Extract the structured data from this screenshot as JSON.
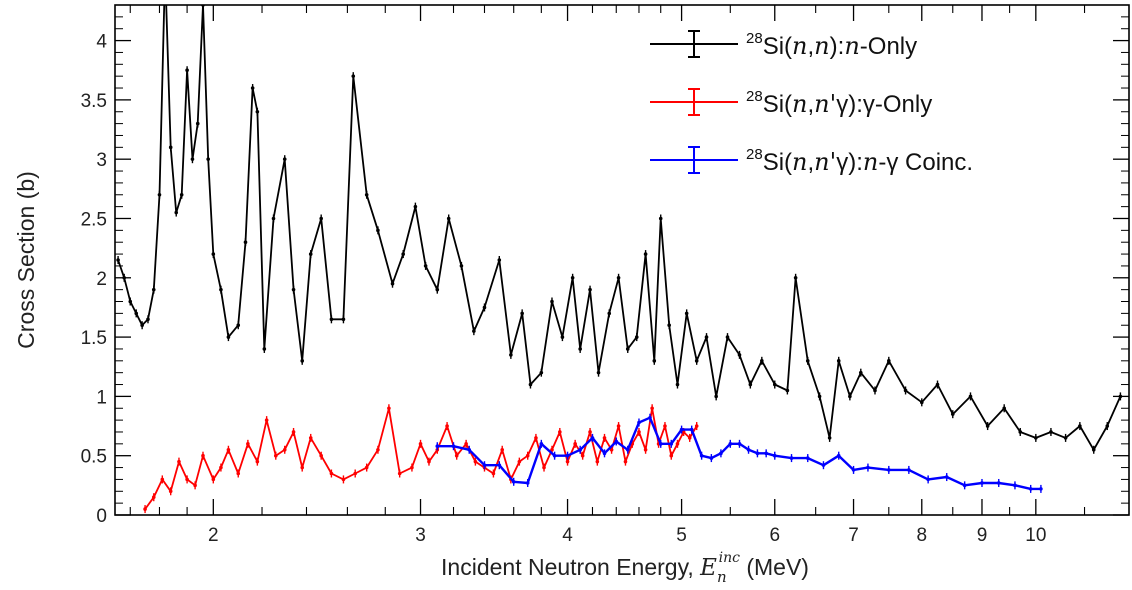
{
  "chart_data": {
    "type": "line",
    "x_scale": "log",
    "xlim": [
      1.65,
      12.0
    ],
    "ylim": [
      0,
      4.3
    ],
    "xticks_major": [
      2,
      3,
      4,
      5,
      6,
      7,
      8,
      9,
      10
    ],
    "xticks_minor": [
      1.7,
      1.8,
      1.9,
      2.2,
      2.4,
      2.6,
      2.8,
      3.2,
      3.4,
      3.6,
      3.8,
      4.2,
      4.4,
      4.6,
      4.8,
      5.5,
      6.5,
      7.5,
      8.5,
      9.5,
      11
    ],
    "yticks_major": [
      0,
      0.5,
      1,
      1.5,
      2,
      2.5,
      3,
      3.5,
      4
    ],
    "xlabel_main": "Incident Neutron Energy, ",
    "xlabel_symbol": "E",
    "xlabel_sub": "n",
    "xlabel_sup": "inc",
    "xlabel_unit": " (MeV)",
    "ylabel": "Cross Section (b)",
    "legend_placement": "top-right",
    "grid": false,
    "series": [
      {
        "name": "28Si(n,n): n-Only",
        "legend": {
          "pre": "28",
          "parts": [
            {
              "t": "Si(",
              "i": false
            },
            {
              "t": "n",
              "i": true
            },
            {
              "t": ",",
              "i": false
            },
            {
              "t": "n",
              "i": true
            },
            {
              "t": "):",
              "i": false
            },
            {
              "t": "n",
              "i": true
            },
            {
              "t": "-Only",
              "i": false
            }
          ]
        },
        "color": "#000000",
        "x": [
          1.66,
          1.68,
          1.7,
          1.72,
          1.74,
          1.76,
          1.78,
          1.8,
          1.82,
          1.84,
          1.86,
          1.88,
          1.9,
          1.92,
          1.94,
          1.96,
          1.98,
          2.0,
          2.03,
          2.06,
          2.1,
          2.13,
          2.16,
          2.18,
          2.21,
          2.25,
          2.3,
          2.34,
          2.38,
          2.42,
          2.47,
          2.52,
          2.58,
          2.63,
          2.7,
          2.76,
          2.84,
          2.9,
          2.97,
          3.03,
          3.1,
          3.17,
          3.25,
          3.33,
          3.4,
          3.5,
          3.58,
          3.66,
          3.72,
          3.8,
          3.88,
          3.96,
          4.04,
          4.1,
          4.18,
          4.25,
          4.34,
          4.42,
          4.5,
          4.58,
          4.66,
          4.74,
          4.8,
          4.88,
          4.96,
          5.05,
          5.15,
          5.25,
          5.35,
          5.47,
          5.6,
          5.72,
          5.85,
          6.0,
          6.15,
          6.25,
          6.4,
          6.55,
          6.68,
          6.8,
          6.95,
          7.1,
          7.3,
          7.5,
          7.75,
          8.0,
          8.25,
          8.5,
          8.8,
          9.1,
          9.4,
          9.7,
          10.0,
          10.3,
          10.6,
          10.9,
          11.2,
          11.5,
          11.8
        ],
        "y": [
          2.15,
          2.0,
          1.8,
          1.7,
          1.6,
          1.65,
          1.9,
          2.7,
          4.6,
          3.1,
          2.55,
          2.7,
          3.75,
          3.0,
          3.3,
          4.3,
          3.0,
          2.2,
          1.9,
          1.5,
          1.6,
          2.3,
          3.6,
          3.4,
          1.4,
          2.5,
          3.0,
          1.9,
          1.3,
          2.2,
          2.5,
          1.65,
          1.65,
          3.7,
          2.7,
          2.4,
          1.95,
          2.2,
          2.6,
          2.1,
          1.9,
          2.5,
          2.1,
          1.55,
          1.75,
          2.15,
          1.35,
          1.7,
          1.1,
          1.2,
          1.8,
          1.5,
          2.0,
          1.4,
          1.9,
          1.2,
          1.7,
          2.0,
          1.4,
          1.5,
          2.2,
          1.3,
          2.5,
          1.6,
          1.1,
          1.7,
          1.3,
          1.5,
          1.0,
          1.5,
          1.35,
          1.1,
          1.3,
          1.1,
          1.05,
          2.0,
          1.3,
          1.0,
          0.65,
          1.3,
          1.0,
          1.2,
          1.05,
          1.3,
          1.05,
          0.95,
          1.1,
          0.85,
          1.0,
          0.75,
          0.9,
          0.7,
          0.65,
          0.7,
          0.65,
          0.75,
          0.55,
          0.75,
          1.0
        ]
      },
      {
        "name": "28Si(n,n'γ):γ-Only",
        "legend": {
          "pre": "28",
          "parts": [
            {
              "t": "Si(",
              "i": false
            },
            {
              "t": "n",
              "i": true
            },
            {
              "t": ",",
              "i": false
            },
            {
              "t": "n'",
              "i": true
            },
            {
              "t": "γ",
              "i": false
            },
            {
              "t": "):γ-Only",
              "i": false
            }
          ]
        },
        "color": "#ff0000",
        "x": [
          1.75,
          1.78,
          1.81,
          1.84,
          1.87,
          1.9,
          1.93,
          1.96,
          2.0,
          2.03,
          2.06,
          2.1,
          2.14,
          2.18,
          2.22,
          2.26,
          2.3,
          2.34,
          2.38,
          2.42,
          2.47,
          2.52,
          2.58,
          2.64,
          2.7,
          2.76,
          2.82,
          2.88,
          2.95,
          3.0,
          3.05,
          3.1,
          3.16,
          3.22,
          3.28,
          3.34,
          3.4,
          3.46,
          3.52,
          3.58,
          3.64,
          3.7,
          3.76,
          3.82,
          3.88,
          3.94,
          4.0,
          4.06,
          4.12,
          4.18,
          4.24,
          4.3,
          4.36,
          4.42,
          4.48,
          4.54,
          4.6,
          4.66,
          4.72,
          4.78,
          4.84,
          4.9,
          4.96,
          5.02,
          5.08,
          5.15
        ],
        "y": [
          0.05,
          0.15,
          0.3,
          0.2,
          0.45,
          0.3,
          0.25,
          0.5,
          0.3,
          0.4,
          0.55,
          0.35,
          0.6,
          0.45,
          0.8,
          0.5,
          0.55,
          0.7,
          0.4,
          0.65,
          0.5,
          0.35,
          0.3,
          0.35,
          0.4,
          0.55,
          0.9,
          0.35,
          0.4,
          0.6,
          0.45,
          0.55,
          0.75,
          0.5,
          0.6,
          0.45,
          0.4,
          0.35,
          0.55,
          0.3,
          0.45,
          0.5,
          0.65,
          0.4,
          0.55,
          0.7,
          0.45,
          0.6,
          0.5,
          0.7,
          0.45,
          0.65,
          0.55,
          0.75,
          0.45,
          0.6,
          0.7,
          0.55,
          0.9,
          0.6,
          0.75,
          0.5,
          0.6,
          0.7,
          0.65,
          0.75
        ]
      },
      {
        "name": "28Si(n,n'γ):n-γ Coinc.",
        "legend": {
          "pre": "28",
          "parts": [
            {
              "t": "Si(",
              "i": false
            },
            {
              "t": "n",
              "i": true
            },
            {
              "t": ",",
              "i": false
            },
            {
              "t": "n'",
              "i": true
            },
            {
              "t": "γ",
              "i": false
            },
            {
              "t": "):",
              "i": false
            },
            {
              "t": "n",
              "i": true
            },
            {
              "t": "-γ Coinc.",
              "i": false
            }
          ]
        },
        "color": "#0000ff",
        "x": [
          3.1,
          3.2,
          3.3,
          3.4,
          3.5,
          3.6,
          3.7,
          3.8,
          3.9,
          4.0,
          4.1,
          4.2,
          4.3,
          4.4,
          4.5,
          4.6,
          4.7,
          4.8,
          4.9,
          5.0,
          5.1,
          5.2,
          5.3,
          5.4,
          5.5,
          5.6,
          5.7,
          5.8,
          5.9,
          6.0,
          6.2,
          6.4,
          6.6,
          6.8,
          7.0,
          7.2,
          7.5,
          7.8,
          8.1,
          8.4,
          8.7,
          9.0,
          9.3,
          9.6,
          9.9,
          10.1
        ],
        "y": [
          0.58,
          0.58,
          0.55,
          0.42,
          0.42,
          0.28,
          0.27,
          0.6,
          0.5,
          0.5,
          0.55,
          0.65,
          0.52,
          0.62,
          0.55,
          0.78,
          0.82,
          0.6,
          0.6,
          0.72,
          0.72,
          0.5,
          0.48,
          0.52,
          0.6,
          0.6,
          0.55,
          0.52,
          0.52,
          0.5,
          0.48,
          0.48,
          0.42,
          0.5,
          0.38,
          0.4,
          0.38,
          0.38,
          0.3,
          0.32,
          0.25,
          0.27,
          0.27,
          0.25,
          0.22,
          0.22
        ]
      }
    ]
  }
}
